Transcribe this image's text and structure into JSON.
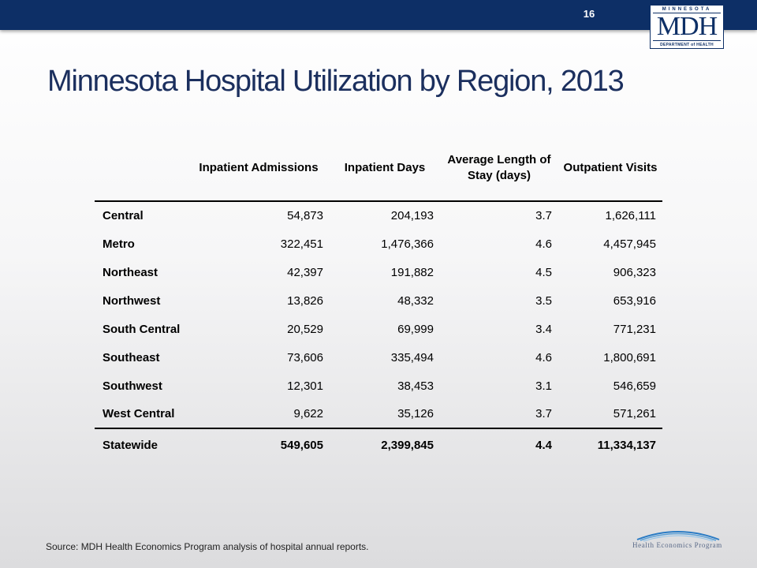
{
  "header": {
    "slide_number": "16",
    "logo": {
      "state": "MINNESOTA",
      "mark": "MDH",
      "dept": "DEPARTMENT of HEALTH"
    }
  },
  "title": "Minnesota Hospital Utilization by Region, 2013",
  "table": {
    "columns": [
      "",
      "Inpatient Admissions",
      "Inpatient Days",
      "Average Length of Stay (days)",
      "Outpatient Visits"
    ],
    "rows": [
      {
        "region": "Central",
        "admissions": "54,873",
        "days": "204,193",
        "alos": "3.7",
        "outpatient": "1,626,111"
      },
      {
        "region": "Metro",
        "admissions": "322,451",
        "days": "1,476,366",
        "alos": "4.6",
        "outpatient": "4,457,945"
      },
      {
        "region": "Northeast",
        "admissions": "42,397",
        "days": "191,882",
        "alos": "4.5",
        "outpatient": "906,323"
      },
      {
        "region": "Northwest",
        "admissions": "13,826",
        "days": "48,332",
        "alos": "3.5",
        "outpatient": "653,916"
      },
      {
        "region": "South Central",
        "admissions": "20,529",
        "days": "69,999",
        "alos": "3.4",
        "outpatient": "771,231"
      },
      {
        "region": "Southeast",
        "admissions": "73,606",
        "days": "335,494",
        "alos": "4.6",
        "outpatient": "1,800,691"
      },
      {
        "region": "Southwest",
        "admissions": "12,301",
        "days": "38,453",
        "alos": "3.1",
        "outpatient": "546,659"
      },
      {
        "region": "West Central",
        "admissions": "9,622",
        "days": "35,126",
        "alos": "3.7",
        "outpatient": "571,261"
      }
    ],
    "total": {
      "region": "Statewide",
      "admissions": "549,605",
      "days": "2,399,845",
      "alos": "4.4",
      "outpatient": "11,334,137"
    }
  },
  "footer": {
    "source": "Source: MDH Health Economics Program analysis of hospital annual reports.",
    "program_logo": "Health Economics Program"
  },
  "colors": {
    "header_bar": "#0d2f66",
    "title": "#1b2f5e",
    "logo": "#0d2f66"
  }
}
